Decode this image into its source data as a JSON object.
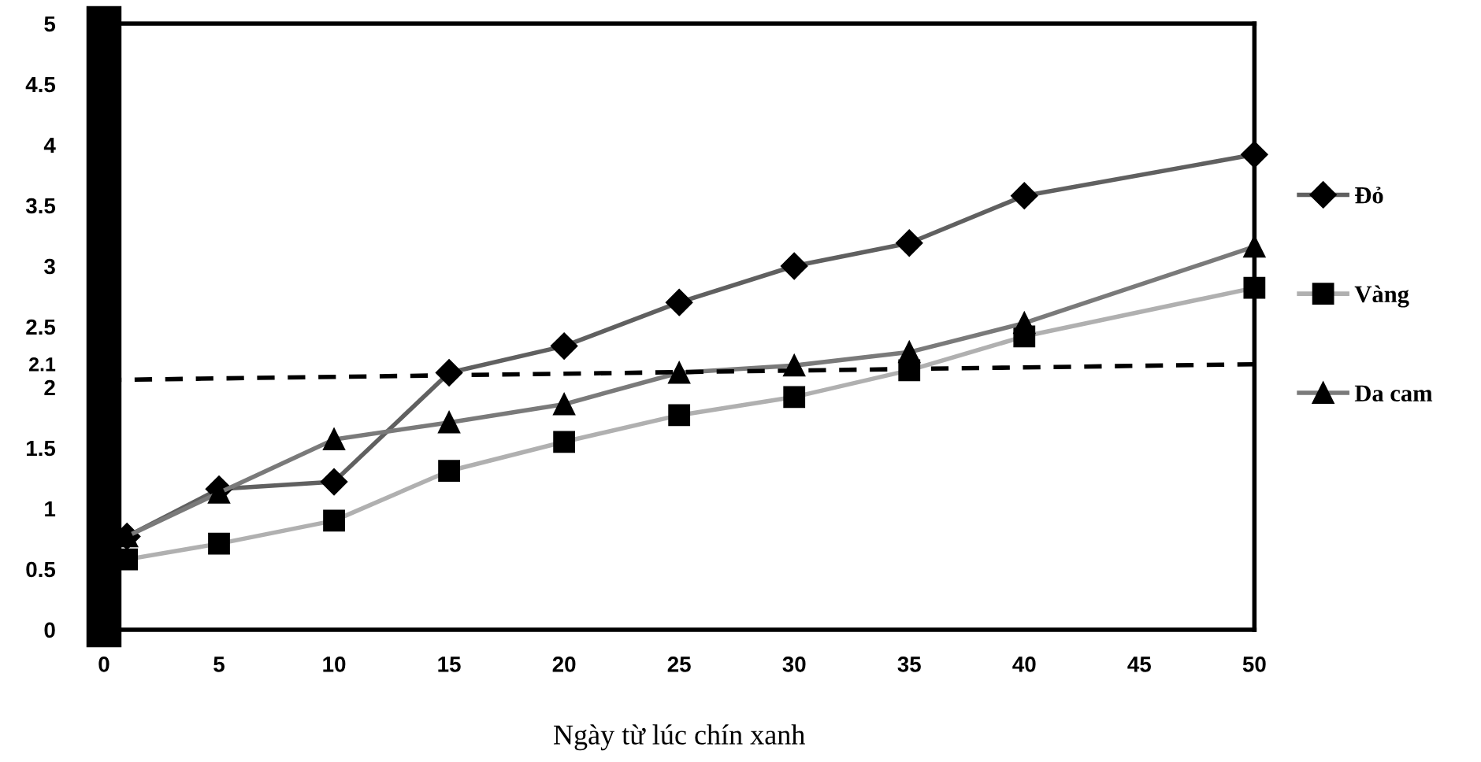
{
  "chart_data": {
    "type": "line",
    "xlabel": "Ngày từ lúc chín xanh",
    "xlim": [
      0,
      50
    ],
    "xticks": [
      0,
      5,
      10,
      15,
      20,
      25,
      30,
      35,
      40,
      45,
      50
    ],
    "ylim": [
      0,
      5
    ],
    "yticks": [
      0,
      0.5,
      1,
      1.5,
      2,
      2.1,
      2.5,
      3,
      3.5,
      4,
      4.5,
      5
    ],
    "grid": false,
    "legend": "right",
    "series": [
      {
        "name": "Đỏ",
        "color": "#606060",
        "marker": "diamond",
        "x": [
          1,
          5,
          10,
          15,
          20,
          25,
          30,
          35,
          40,
          50
        ],
        "values": [
          0.77,
          1.16,
          1.22,
          2.12,
          2.34,
          2.7,
          3.0,
          3.19,
          3.58,
          3.92
        ]
      },
      {
        "name": "Vàng",
        "color": "#b0b0b0",
        "marker": "square",
        "x": [
          1,
          5,
          10,
          15,
          20,
          25,
          30,
          35,
          40,
          50
        ],
        "values": [
          0.58,
          0.71,
          0.9,
          1.31,
          1.55,
          1.77,
          1.92,
          2.14,
          2.42,
          2.82
        ]
      },
      {
        "name": "Da cam",
        "color": "#7a7a7a",
        "marker": "triangle",
        "x": [
          1,
          5,
          10,
          15,
          20,
          25,
          30,
          35,
          40,
          50
        ],
        "values": [
          0.77,
          1.13,
          1.57,
          1.71,
          1.86,
          2.12,
          2.18,
          2.29,
          2.53,
          3.16
        ]
      },
      {
        "color": "#000000",
        "marker": "none",
        "line_style": "dashed",
        "x": [
          0,
          50
        ],
        "values": [
          2.06,
          2.19
        ]
      }
    ]
  }
}
